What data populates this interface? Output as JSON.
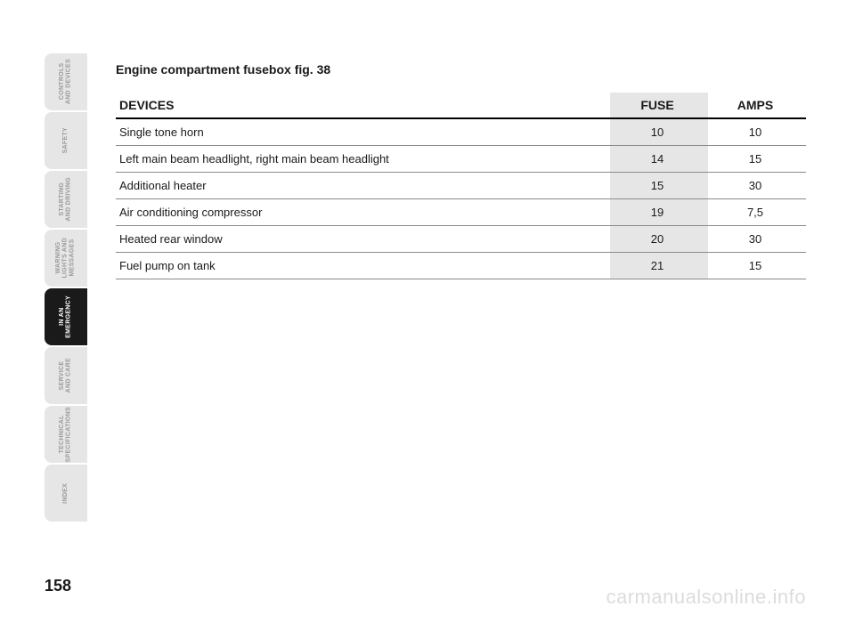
{
  "sidebar": {
    "tabs": [
      {
        "label": "CONTROLS\nAND DEVICES",
        "active": false
      },
      {
        "label": "SAFETY",
        "active": false
      },
      {
        "label": "STARTING\nAND DRIVING",
        "active": false
      },
      {
        "label": "WARNING\nLIGHTS AND\nMESSAGES",
        "active": false
      },
      {
        "label": "IN AN\nEMERGENCY",
        "active": true
      },
      {
        "label": "SERVICE\nAND CARE",
        "active": false
      },
      {
        "label": "TECHNICAL\nSPECIFICATIONS",
        "active": false
      },
      {
        "label": "INDEX",
        "active": false
      }
    ]
  },
  "heading": "Engine compartment fusebox fig. 38",
  "table": {
    "columns": {
      "devices": "DEVICES",
      "fuse": "FUSE",
      "amps": "AMPS"
    },
    "rows": [
      {
        "devices": "Single tone horn",
        "fuse": "10",
        "amps": "10"
      },
      {
        "devices": "Left main beam headlight, right main beam headlight",
        "fuse": "14",
        "amps": "15"
      },
      {
        "devices": "Additional heater",
        "fuse": "15",
        "amps": "30"
      },
      {
        "devices": "Air conditioning compressor",
        "fuse": "19",
        "amps": "7,5"
      },
      {
        "devices": "Heated rear window",
        "fuse": "20",
        "amps": "30"
      },
      {
        "devices": "Fuel pump on tank",
        "fuse": "21",
        "amps": "15"
      }
    ]
  },
  "page_number": "158",
  "watermark": "carmanualsonline.info"
}
